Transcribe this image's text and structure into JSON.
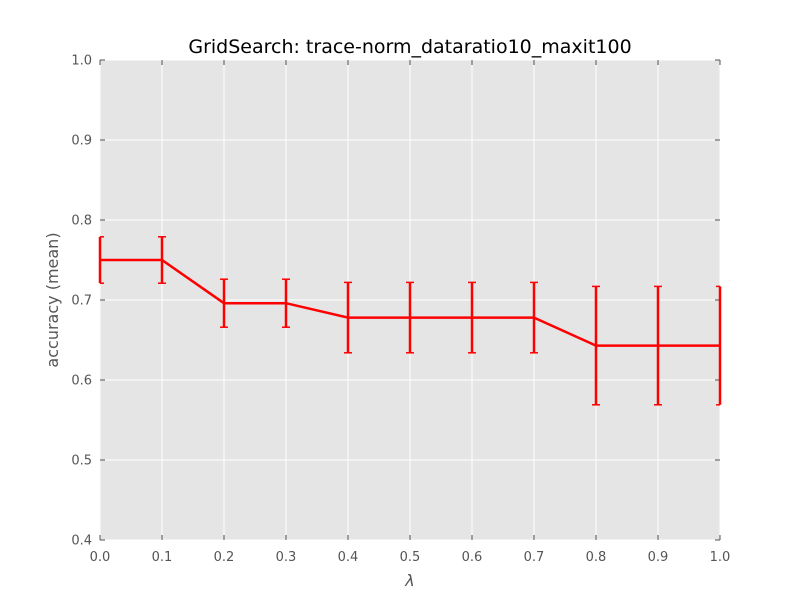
{
  "chart_data": {
    "type": "line",
    "title": "GridSearch: trace-norm_dataratio10_maxit100",
    "xlabel": "λ",
    "ylabel": "accuracy (mean)",
    "xlim": [
      0.0,
      1.0
    ],
    "ylim": [
      0.4,
      1.0
    ],
    "x_ticks": [
      "0.0",
      "0.1",
      "0.2",
      "0.3",
      "0.4",
      "0.5",
      "0.6",
      "0.7",
      "0.8",
      "0.9",
      "1.0"
    ],
    "y_ticks": [
      "0.4",
      "0.5",
      "0.6",
      "0.7",
      "0.8",
      "0.9",
      "1.0"
    ],
    "grid": true,
    "series": [
      {
        "color": "#ff0000",
        "x": [
          0.0,
          0.1,
          0.2,
          0.3,
          0.4,
          0.5,
          0.6,
          0.7,
          0.8,
          0.9,
          1.0
        ],
        "y": [
          0.75,
          0.75,
          0.696,
          0.696,
          0.678,
          0.678,
          0.678,
          0.678,
          0.643,
          0.643,
          0.643
        ],
        "error": [
          0.029,
          0.029,
          0.03,
          0.03,
          0.044,
          0.044,
          0.044,
          0.044,
          0.074,
          0.074,
          0.074
        ]
      }
    ],
    "colors": {
      "plot_background": "#e5e5e5",
      "grid": "#ffffff",
      "series": "#ff0000"
    }
  }
}
